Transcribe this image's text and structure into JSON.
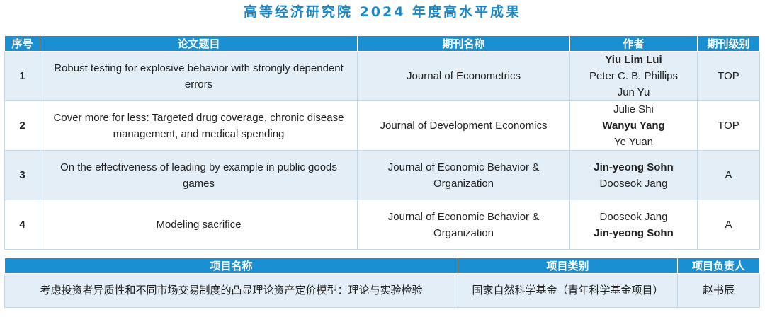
{
  "title": "高等经济研究院 2024 年度高水平成果",
  "papers": {
    "headers": [
      "序号",
      "论文题目",
      "期刊名称",
      "作者",
      "期刊级别"
    ],
    "rows": [
      {
        "no": "1",
        "title": "Robust testing for explosive behavior with strongly dependent errors",
        "journal": "Journal of Econometrics",
        "authors": [
          {
            "name": "Yiu Lim Lui",
            "bold": true
          },
          {
            "name": "Peter C. B. Phillips",
            "bold": false
          },
          {
            "name": "Jun Yu",
            "bold": false
          }
        ],
        "level": "TOP"
      },
      {
        "no": "2",
        "title": "Cover more for less: Targeted drug coverage, chronic disease management, and medical spending",
        "journal": "Journal of Development Economics",
        "authors": [
          {
            "name": "Julie Shi",
            "bold": false
          },
          {
            "name": "Wanyu Yang",
            "bold": true
          },
          {
            "name": "Ye Yuan",
            "bold": false
          }
        ],
        "level": "TOP"
      },
      {
        "no": "3",
        "title": "On the effectiveness of leading by example in public goods games",
        "journal": "Journal of Economic Behavior & Organization",
        "authors": [
          {
            "name": "Jin-yeong Sohn",
            "bold": true
          },
          {
            "name": "Dooseok Jang",
            "bold": false
          }
        ],
        "level": "A"
      },
      {
        "no": "4",
        "title": "Modeling sacrifice",
        "journal": "Journal of Economic Behavior & Organization",
        "authors": [
          {
            "name": "Dooseok Jang",
            "bold": false
          },
          {
            "name": "Jin-yeong Sohn",
            "bold": true
          }
        ],
        "level": "A"
      }
    ]
  },
  "projects": {
    "headers": [
      "项目名称",
      "项目类别",
      "项目负责人"
    ],
    "rows": [
      {
        "name": "考虑投资者异质性和不同市场交易制度的凸显理论资产定价模型：理论与实验检验",
        "category": "国家自然科学基金（青年科学基金项目）",
        "leader": "赵书辰"
      }
    ]
  }
}
